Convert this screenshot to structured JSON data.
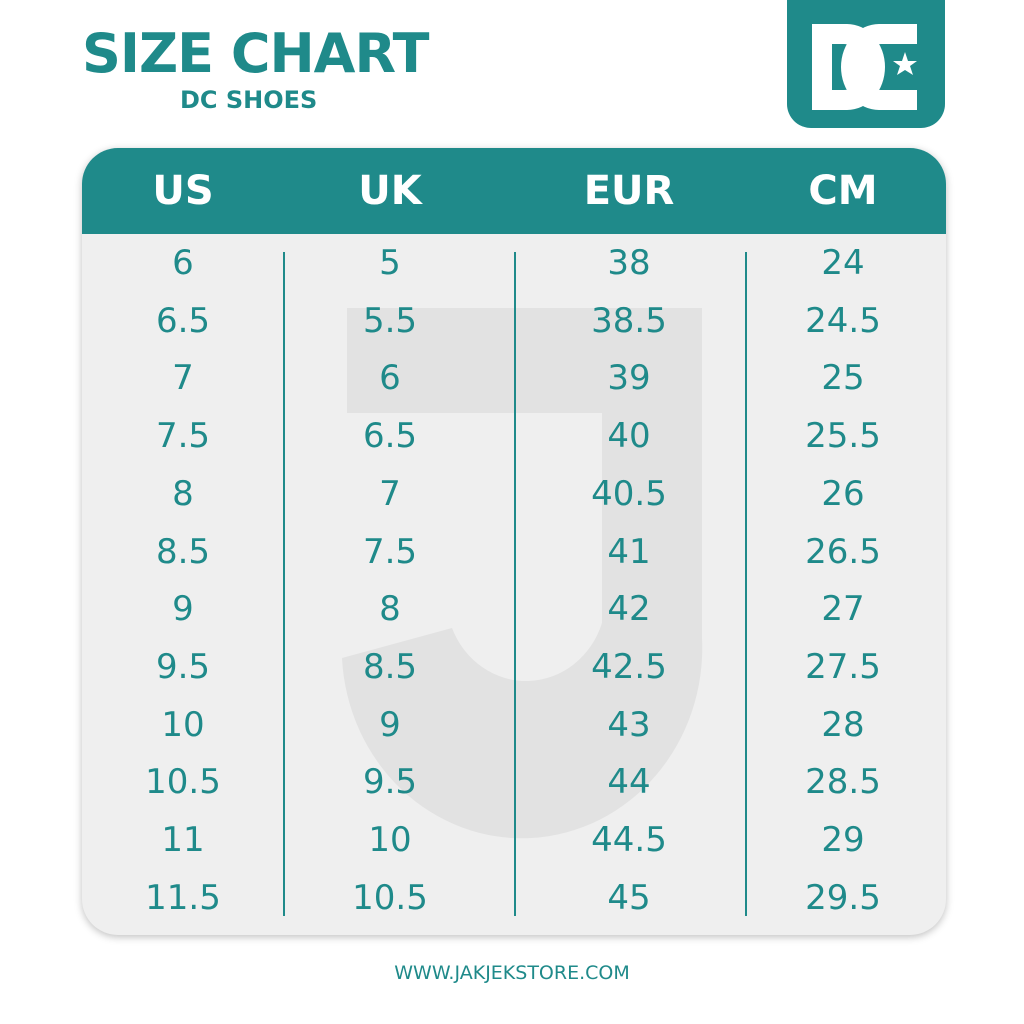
{
  "header": {
    "title": "SIZE CHART",
    "subtitle": "DC SHOES"
  },
  "table": {
    "columns": [
      "US",
      "UK",
      "EUR",
      "CM"
    ],
    "rows": [
      [
        "6",
        "5",
        "38",
        "24"
      ],
      [
        "6.5",
        "5.5",
        "38.5",
        "24.5"
      ],
      [
        "7",
        "6",
        "39",
        "25"
      ],
      [
        "7.5",
        "6.5",
        "40",
        "25.5"
      ],
      [
        "8",
        "7",
        "40.5",
        "26"
      ],
      [
        "8.5",
        "7.5",
        "41",
        "26.5"
      ],
      [
        "9",
        "8",
        "42",
        "27"
      ],
      [
        "9.5",
        "8.5",
        "42.5",
        "27.5"
      ],
      [
        "10",
        "9",
        "43",
        "28"
      ],
      [
        "10.5",
        "9.5",
        "44",
        "28.5"
      ],
      [
        "11",
        "10",
        "44.5",
        "29"
      ],
      [
        "11.5",
        "10.5",
        "45",
        "29.5"
      ]
    ]
  },
  "footer": {
    "website": "WWW.JAKJEKSTORE.COM"
  }
}
